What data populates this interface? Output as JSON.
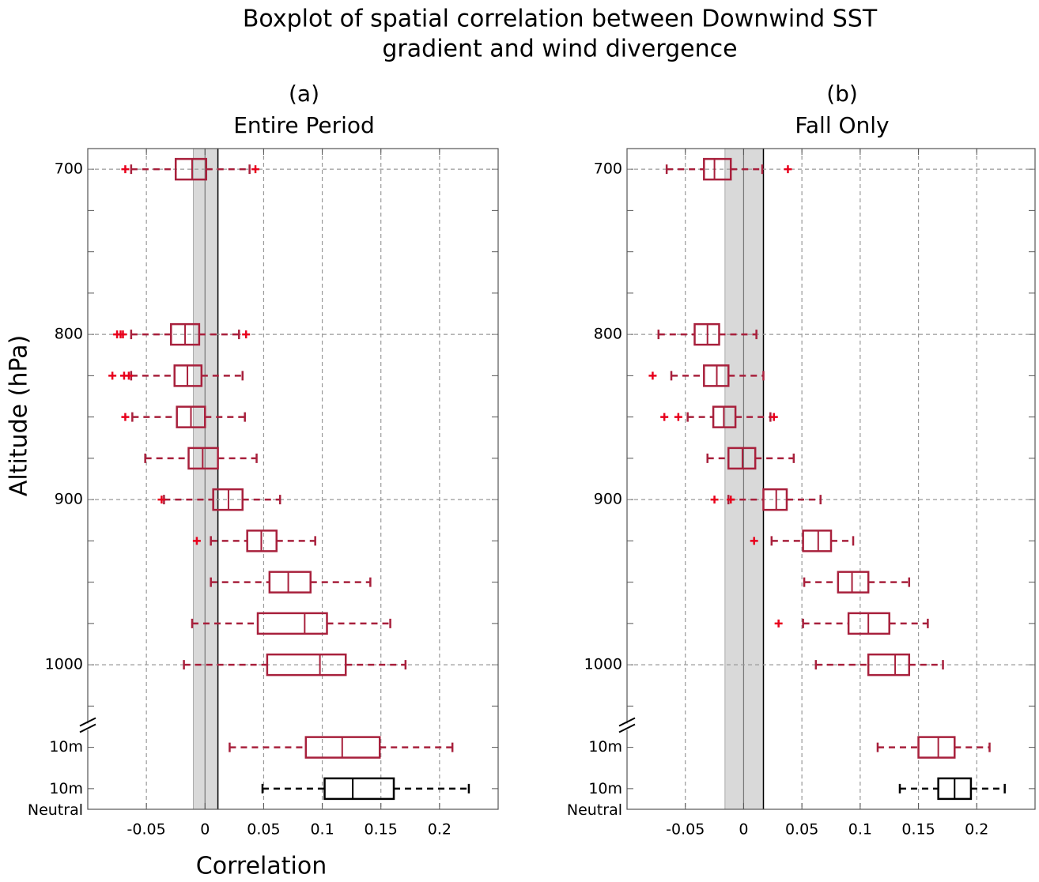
{
  "title": [
    "Boxplot of spatial correlation between Downwind SST",
    "gradient and wind divergence"
  ],
  "chart_data": [
    {
      "type": "box",
      "title": "(a)",
      "subtitle": "Entire Period",
      "xlabel": "Correlation",
      "ylabel": "Altitude (hPa)",
      "categories": [
        "700",
        null,
        null,
        null,
        "800",
        null,
        null,
        null,
        "900",
        null,
        null,
        null,
        "1000",
        null,
        "10m",
        "10m Neutral"
      ],
      "xlim": [
        -0.1,
        0.25
      ],
      "xticks": [
        -0.05,
        0,
        0.05,
        0.1,
        0.15,
        0.2
      ],
      "grid": true,
      "band": [
        -0.01,
        0.011
      ],
      "whislo": [
        -0.063,
        null,
        null,
        null,
        -0.063,
        -0.063,
        -0.062,
        -0.051,
        -0.035,
        0.005,
        0.005,
        -0.011,
        -0.018,
        null,
        0.021,
        0.049
      ],
      "q1": [
        -0.025,
        null,
        null,
        null,
        -0.029,
        -0.026,
        -0.024,
        -0.014,
        0.007,
        0.036,
        0.055,
        0.045,
        0.053,
        null,
        0.086,
        0.102
      ],
      "median": [
        -0.011,
        null,
        null,
        null,
        -0.017,
        -0.015,
        -0.012,
        -0.002,
        0.02,
        0.048,
        0.071,
        0.085,
        0.098,
        null,
        0.117,
        0.126
      ],
      "q3": [
        0.001,
        null,
        null,
        null,
        -0.005,
        -0.003,
        0.0,
        0.011,
        0.032,
        0.061,
        0.09,
        0.104,
        0.12,
        null,
        0.149,
        0.161
      ],
      "whishi": [
        0.038,
        null,
        null,
        null,
        0.029,
        0.032,
        0.034,
        0.044,
        0.064,
        0.094,
        0.141,
        0.158,
        0.171,
        null,
        0.211,
        0.225
      ],
      "fliers": [
        [
          -0.068,
          0.043
        ],
        null,
        null,
        null,
        [
          -0.075,
          -0.072,
          -0.07,
          0.035
        ],
        [
          -0.079,
          -0.069,
          -0.065
        ],
        [
          -0.068
        ],
        [],
        [
          -0.037
        ],
        [
          -0.007
        ],
        [],
        [],
        [],
        null,
        [],
        []
      ],
      "colors": [
        "#a8203c",
        null,
        null,
        null,
        "#a8203c",
        "#a8203c",
        "#a8203c",
        "#a8203c",
        "#a8203c",
        "#a8203c",
        "#a8203c",
        "#a8203c",
        "#a8203c",
        null,
        "#a8203c",
        "#000000"
      ],
      "flier_color": "#e8001c"
    },
    {
      "type": "box",
      "title": "(b)",
      "subtitle": "Fall Only",
      "categories": [
        "700",
        null,
        null,
        null,
        "800",
        null,
        null,
        null,
        "900",
        null,
        null,
        null,
        "1000",
        null,
        "10m",
        "10m Neutral"
      ],
      "xlim": [
        -0.1,
        0.25
      ],
      "xticks": [
        -0.05,
        0,
        0.05,
        0.1,
        0.15,
        0.2
      ],
      "grid": true,
      "band": [
        -0.016,
        0.017
      ],
      "whislo": [
        -0.066,
        null,
        null,
        null,
        -0.073,
        -0.062,
        -0.048,
        -0.031,
        -0.013,
        0.024,
        0.052,
        0.051,
        0.062,
        null,
        0.115,
        0.134
      ],
      "q1": [
        -0.034,
        null,
        null,
        null,
        -0.042,
        -0.034,
        -0.026,
        -0.013,
        0.017,
        0.051,
        0.081,
        0.09,
        0.107,
        null,
        0.15,
        0.167
      ],
      "median": [
        -0.025,
        null,
        null,
        null,
        -0.031,
        -0.023,
        -0.017,
        -0.001,
        0.028,
        0.064,
        0.093,
        0.107,
        0.13,
        null,
        0.167,
        0.181
      ],
      "q3": [
        -0.011,
        null,
        null,
        null,
        -0.021,
        -0.013,
        -0.007,
        0.01,
        0.037,
        0.075,
        0.107,
        0.125,
        0.142,
        null,
        0.181,
        0.195
      ],
      "whishi": [
        0.016,
        null,
        null,
        null,
        0.011,
        0.017,
        0.023,
        0.043,
        0.066,
        0.094,
        0.142,
        0.158,
        0.171,
        null,
        0.211,
        0.224
      ],
      "fliers": [
        [
          0.038
        ],
        null,
        null,
        null,
        [],
        [
          -0.078
        ],
        [
          -0.068,
          -0.056,
          0.026
        ],
        [],
        [
          -0.025,
          -0.011
        ],
        [
          0.009
        ],
        [],
        [
          0.03
        ],
        [],
        null,
        [],
        []
      ],
      "colors": [
        "#a8203c",
        null,
        null,
        null,
        "#a8203c",
        "#a8203c",
        "#a8203c",
        "#a8203c",
        "#a8203c",
        "#a8203c",
        "#a8203c",
        "#a8203c",
        "#a8203c",
        null,
        "#a8203c",
        "#000000"
      ],
      "flier_color": "#e8001c"
    }
  ]
}
